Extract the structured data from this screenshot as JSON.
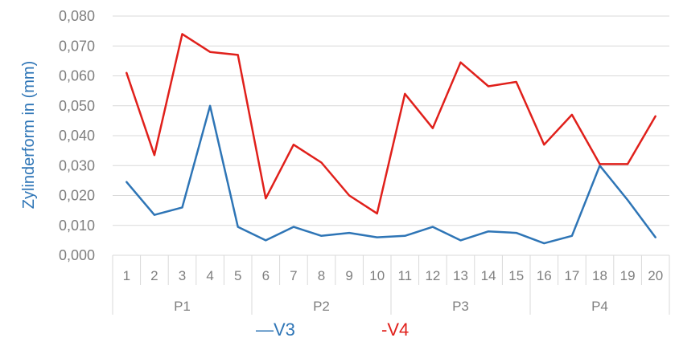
{
  "chart_data": {
    "type": "line",
    "ylabel": "Zylinderform in (mm)",
    "ylim": [
      0,
      0.08
    ],
    "yticks": [
      "0,000",
      "0,010",
      "0,020",
      "0,030",
      "0,040",
      "0,050",
      "0,060",
      "0,070",
      "0,080"
    ],
    "grid": true,
    "legend_position": "bottom",
    "categories": [
      "1",
      "2",
      "3",
      "4",
      "5",
      "6",
      "7",
      "8",
      "9",
      "10",
      "11",
      "12",
      "13",
      "14",
      "15",
      "16",
      "17",
      "18",
      "19",
      "20"
    ],
    "groups": [
      {
        "label": "P1",
        "start": 0,
        "count": 5
      },
      {
        "label": "P2",
        "start": 5,
        "count": 5
      },
      {
        "label": "P3",
        "start": 10,
        "count": 5
      },
      {
        "label": "P4",
        "start": 15,
        "count": 5
      }
    ],
    "series": [
      {
        "name": "V3",
        "color": "#2e75b6",
        "values": [
          0.0245,
          0.0135,
          0.016,
          0.05,
          0.0095,
          0.005,
          0.0095,
          0.0065,
          0.0075,
          0.006,
          0.0065,
          0.0095,
          0.005,
          0.008,
          0.0075,
          0.004,
          0.0065,
          0.03,
          0.0185,
          0.006
        ]
      },
      {
        "name": "V4",
        "color": "#e0201b",
        "values": [
          0.061,
          0.0335,
          0.074,
          0.068,
          0.067,
          0.019,
          0.037,
          0.031,
          0.02,
          0.014,
          0.054,
          0.0425,
          0.0645,
          0.0565,
          0.058,
          0.037,
          0.047,
          0.0305,
          0.0305,
          0.0465
        ]
      }
    ],
    "legend": [
      {
        "prefix": "—",
        "label": "V3",
        "color": "#2e75b6"
      },
      {
        "prefix": "-",
        "label": "V4",
        "color": "#e0201b"
      }
    ]
  }
}
